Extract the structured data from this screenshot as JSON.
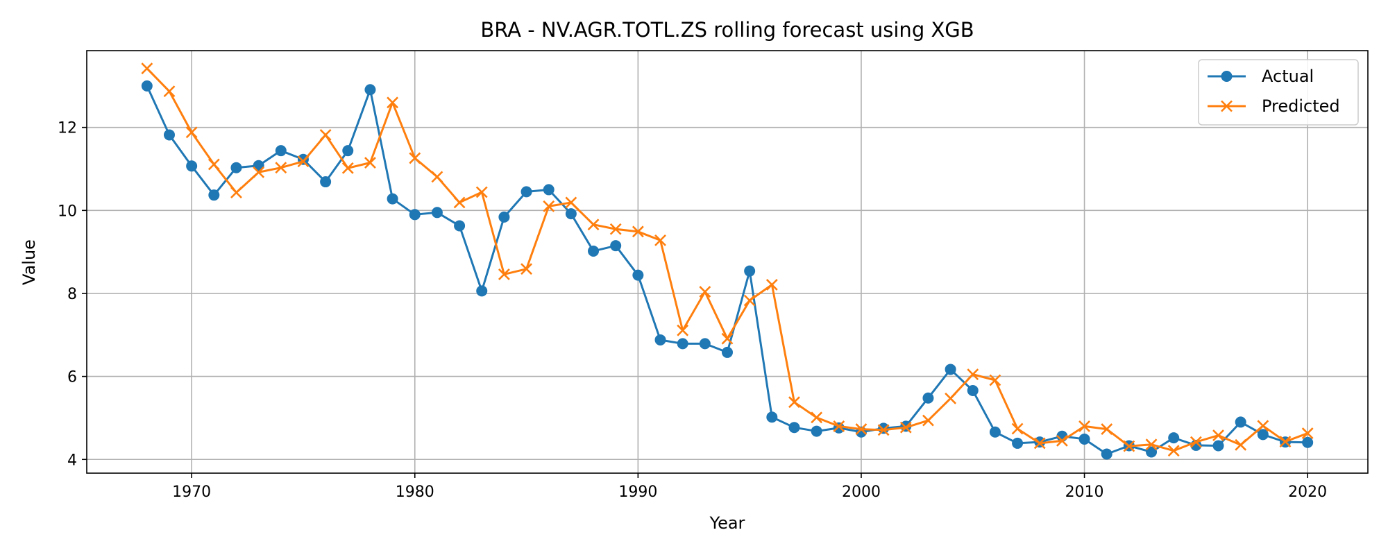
{
  "chart_data": {
    "type": "line",
    "title": "BRA - NV.AGR.TOTL.ZS rolling forecast using XGB",
    "xlabel": "Year",
    "ylabel": "Value",
    "xlim": [
      1965.3,
      2022.7
    ],
    "ylim": [
      3.67,
      13.85
    ],
    "xticks": [
      1970,
      1980,
      1990,
      2000,
      2010,
      2020
    ],
    "yticks": [
      4,
      6,
      8,
      10,
      12
    ],
    "grid": true,
    "legend_position": "top-right",
    "x": [
      1968,
      1969,
      1970,
      1971,
      1972,
      1973,
      1974,
      1975,
      1976,
      1977,
      1978,
      1979,
      1980,
      1981,
      1982,
      1983,
      1984,
      1985,
      1986,
      1987,
      1988,
      1989,
      1990,
      1991,
      1992,
      1993,
      1994,
      1995,
      1996,
      1997,
      1998,
      1999,
      2000,
      2001,
      2002,
      2003,
      2004,
      2005,
      2006,
      2007,
      2008,
      2009,
      2010,
      2011,
      2012,
      2013,
      2014,
      2015,
      2016,
      2017,
      2018,
      2019,
      2020
    ],
    "series": [
      {
        "name": "Actual",
        "color": "#1f77b4",
        "marker": "circle",
        "values": [
          13.0,
          11.82,
          11.07,
          10.37,
          11.03,
          11.08,
          11.44,
          11.23,
          10.69,
          11.44,
          12.91,
          10.28,
          9.9,
          9.95,
          9.63,
          8.06,
          9.84,
          10.45,
          10.5,
          9.92,
          9.02,
          9.15,
          8.44,
          6.88,
          6.79,
          6.79,
          6.58,
          8.54,
          5.02,
          4.77,
          4.68,
          4.76,
          4.66,
          4.75,
          4.8,
          5.48,
          6.17,
          5.66,
          4.66,
          4.39,
          4.42,
          4.56,
          4.49,
          4.13,
          4.33,
          4.18,
          4.52,
          4.34,
          4.33,
          4.9,
          4.6,
          4.42,
          4.41
        ]
      },
      {
        "name": "Predicted",
        "color": "#ff7f0e",
        "marker": "x",
        "values": [
          13.42,
          12.87,
          11.88,
          11.11,
          10.43,
          10.92,
          11.03,
          11.18,
          11.82,
          11.02,
          11.15,
          12.6,
          11.26,
          10.81,
          10.19,
          10.44,
          8.46,
          8.59,
          10.1,
          10.19,
          9.66,
          9.55,
          9.49,
          9.28,
          7.11,
          8.04,
          6.91,
          7.83,
          8.21,
          5.38,
          5.01,
          4.8,
          4.73,
          4.71,
          4.77,
          4.94,
          5.47,
          6.05,
          5.91,
          4.74,
          4.39,
          4.45,
          4.8,
          4.73,
          4.32,
          4.36,
          4.21,
          4.42,
          4.58,
          4.35,
          4.81,
          4.43,
          4.63
        ]
      }
    ]
  }
}
